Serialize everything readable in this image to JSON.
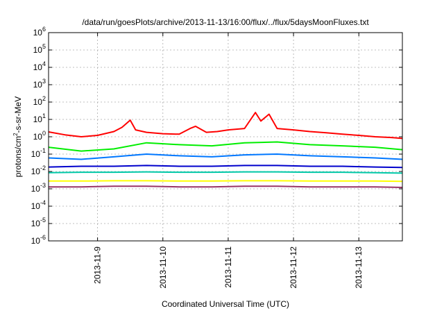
{
  "chart_data": {
    "type": "line",
    "title": "/data/run/goesPlots/archive/2013-11-13/16:00/flux/../flux/5daysMoonFluxes.txt",
    "xlabel": "Coordinated Universal Time (UTC)",
    "ylabel": {
      "base": "protons/cm",
      "sup": "2",
      "rest": "-s-sr-MeV"
    },
    "yscale": "log",
    "ylim": [
      1e-06,
      1000000.0
    ],
    "xlim": [
      "2013-11-08T06:00",
      "2013-11-13T16:00"
    ],
    "grid": true,
    "legend": "none",
    "y_ticks": [
      {
        "value": 1e-06,
        "base": "10",
        "exp": "-6"
      },
      {
        "value": 1e-05,
        "base": "10",
        "exp": "-5"
      },
      {
        "value": 0.0001,
        "base": "10",
        "exp": "-4"
      },
      {
        "value": 0.001,
        "base": "10",
        "exp": "-3"
      },
      {
        "value": 0.01,
        "base": "10",
        "exp": "-2"
      },
      {
        "value": 0.1,
        "base": "10",
        "exp": "-1"
      },
      {
        "value": 1.0,
        "base": "10",
        "exp": "0"
      },
      {
        "value": 10.0,
        "base": "10",
        "exp": "1"
      },
      {
        "value": 100.0,
        "base": "10",
        "exp": "2"
      },
      {
        "value": 1000.0,
        "base": "10",
        "exp": "3"
      },
      {
        "value": 10000.0,
        "base": "10",
        "exp": "4"
      },
      {
        "value": 100000.0,
        "base": "10",
        "exp": "5"
      },
      {
        "value": 1000000.0,
        "base": "10",
        "exp": "6"
      }
    ],
    "x_ticks": [
      {
        "value": "2013-11-09",
        "label": "2013-11-9"
      },
      {
        "value": "2013-11-10",
        "label": "2013-11-10"
      },
      {
        "value": "2013-11-11",
        "label": "2013-11-11"
      },
      {
        "value": "2013-11-12",
        "label": "2013-11-12"
      },
      {
        "value": "2013-11-13",
        "label": "2013-11-13"
      }
    ],
    "series": [
      {
        "color": "#ff0000",
        "x": [
          "2013-11-08T06:00",
          "2013-11-08T12:00",
          "2013-11-08T18:00",
          "2013-11-09T00:00",
          "2013-11-09T06:00",
          "2013-11-09T09:00",
          "2013-11-09T12:00",
          "2013-11-09T14:00",
          "2013-11-09T18:00",
          "2013-11-10T00:00",
          "2013-11-10T06:00",
          "2013-11-10T10:00",
          "2013-11-10T12:00",
          "2013-11-10T16:00",
          "2013-11-10T20:00",
          "2013-11-11T00:00",
          "2013-11-11T06:00",
          "2013-11-11T10:00",
          "2013-11-11T12:00",
          "2013-11-11T15:00",
          "2013-11-11T18:00",
          "2013-11-12T00:00",
          "2013-11-12T06:00",
          "2013-11-12T12:00",
          "2013-11-12T18:00",
          "2013-11-13T00:00",
          "2013-11-13T06:00",
          "2013-11-13T12:00",
          "2013-11-13T16:00"
        ],
        "y": [
          1.9,
          1.3,
          1.0,
          1.2,
          2.0,
          3.5,
          9.0,
          2.5,
          1.8,
          1.5,
          1.4,
          3.0,
          4.0,
          1.8,
          2.0,
          2.5,
          3.0,
          25,
          8.0,
          20,
          3.0,
          2.5,
          2.0,
          1.7,
          1.4,
          1.2,
          1.0,
          0.9,
          0.8
        ]
      },
      {
        "color": "#00ee00",
        "x": [
          "2013-11-08T06:00",
          "2013-11-08T18:00",
          "2013-11-09T06:00",
          "2013-11-09T18:00",
          "2013-11-10T06:00",
          "2013-11-10T18:00",
          "2013-11-11T06:00",
          "2013-11-11T18:00",
          "2013-11-12T06:00",
          "2013-11-12T18:00",
          "2013-11-13T06:00",
          "2013-11-13T16:00"
        ],
        "y": [
          0.25,
          0.15,
          0.2,
          0.45,
          0.35,
          0.3,
          0.45,
          0.5,
          0.35,
          0.3,
          0.25,
          0.18
        ]
      },
      {
        "color": "#0077ff",
        "x": [
          "2013-11-08T06:00",
          "2013-11-08T18:00",
          "2013-11-09T06:00",
          "2013-11-09T18:00",
          "2013-11-10T06:00",
          "2013-11-10T18:00",
          "2013-11-11T06:00",
          "2013-11-11T18:00",
          "2013-11-12T06:00",
          "2013-11-12T18:00",
          "2013-11-13T06:00",
          "2013-11-13T16:00"
        ],
        "y": [
          0.06,
          0.05,
          0.07,
          0.1,
          0.08,
          0.07,
          0.09,
          0.1,
          0.08,
          0.07,
          0.06,
          0.05
        ]
      },
      {
        "color": "#0000cc",
        "x": [
          "2013-11-08T06:00",
          "2013-11-08T18:00",
          "2013-11-09T06:00",
          "2013-11-09T18:00",
          "2013-11-10T06:00",
          "2013-11-10T18:00",
          "2013-11-11T06:00",
          "2013-11-11T18:00",
          "2013-11-12T06:00",
          "2013-11-12T18:00",
          "2013-11-13T06:00",
          "2013-11-13T16:00"
        ],
        "y": [
          0.018,
          0.02,
          0.02,
          0.022,
          0.02,
          0.02,
          0.022,
          0.022,
          0.02,
          0.02,
          0.018,
          0.017
        ]
      },
      {
        "color": "#00c8a8",
        "x": [
          "2013-11-08T06:00",
          "2013-11-08T18:00",
          "2013-11-09T06:00",
          "2013-11-09T18:00",
          "2013-11-10T06:00",
          "2013-11-10T18:00",
          "2013-11-11T06:00",
          "2013-11-11T18:00",
          "2013-11-12T06:00",
          "2013-11-12T18:00",
          "2013-11-13T06:00",
          "2013-11-13T16:00"
        ],
        "y": [
          0.0085,
          0.009,
          0.009,
          0.0095,
          0.009,
          0.009,
          0.0095,
          0.0095,
          0.009,
          0.009,
          0.0085,
          0.008
        ]
      },
      {
        "color": "#ffff00",
        "x": [
          "2013-11-08T06:00",
          "2013-11-08T18:00",
          "2013-11-09T06:00",
          "2013-11-09T18:00",
          "2013-11-10T06:00",
          "2013-11-10T18:00",
          "2013-11-11T06:00",
          "2013-11-11T18:00",
          "2013-11-12T06:00",
          "2013-11-12T18:00",
          "2013-11-13T06:00",
          "2013-11-13T16:00"
        ],
        "y": [
          0.0028,
          0.0028,
          0.0029,
          0.0029,
          0.0028,
          0.0028,
          0.0029,
          0.0029,
          0.0028,
          0.0028,
          0.0028,
          0.0027
        ]
      },
      {
        "color": "#993366",
        "x": [
          "2013-11-08T06:00",
          "2013-11-08T18:00",
          "2013-11-09T06:00",
          "2013-11-09T18:00",
          "2013-11-10T06:00",
          "2013-11-10T18:00",
          "2013-11-11T06:00",
          "2013-11-11T18:00",
          "2013-11-12T06:00",
          "2013-11-12T18:00",
          "2013-11-13T06:00",
          "2013-11-13T16:00"
        ],
        "y": [
          0.0013,
          0.0013,
          0.0014,
          0.0014,
          0.0013,
          0.0013,
          0.0014,
          0.0014,
          0.0013,
          0.0013,
          0.0013,
          0.0012
        ]
      }
    ]
  }
}
